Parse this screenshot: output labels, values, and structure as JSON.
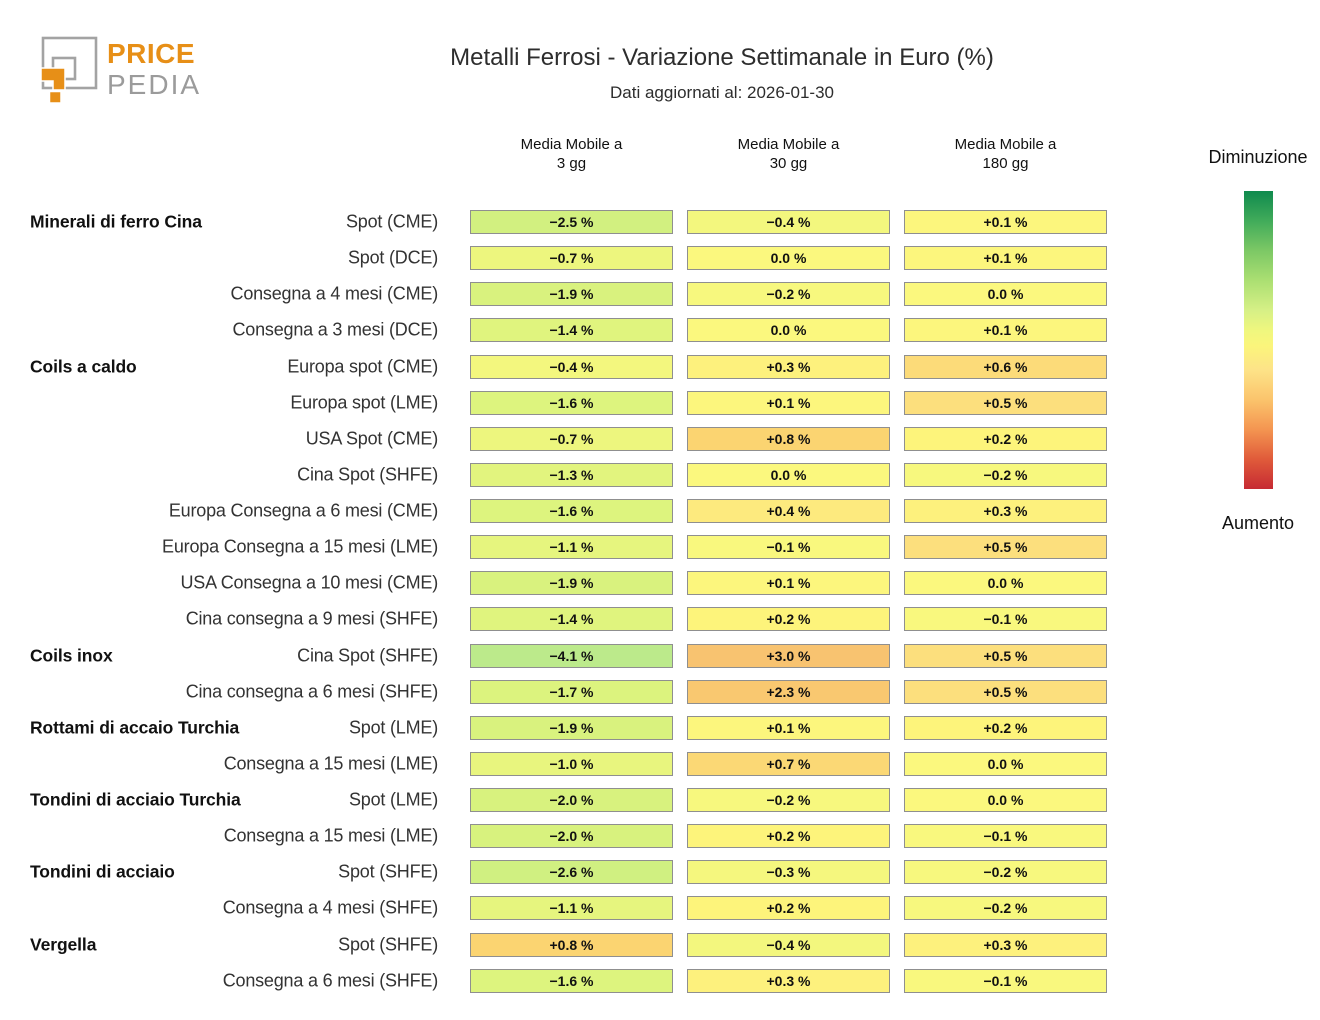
{
  "brand": {
    "line1": "PRICE",
    "line2": "PEDIA"
  },
  "header": {
    "title": "Metalli Ferrosi - Variazione Settimanale in Euro (%)",
    "subtitle": "Dati aggiornati al: 2026-01-30"
  },
  "legend": {
    "top": "Diminuzione",
    "bottom": "Aumento"
  },
  "colors": {
    "brand_orange": "#e78f17",
    "brand_gray": "#9b9b9b",
    "cell_border": "#8f8f8f",
    "colormap_anchors": [
      [
        -10,
        "#149150"
      ],
      [
        -7,
        "#63bd63"
      ],
      [
        -5,
        "#9cdb75"
      ],
      [
        -4,
        "#c0ec8d"
      ],
      [
        -3,
        "#c9ee86"
      ],
      [
        -2.5,
        "#d2f080"
      ],
      [
        -2,
        "#d8f27e"
      ],
      [
        -1.5,
        "#def47e"
      ],
      [
        -1,
        "#e8f57e"
      ],
      [
        -0.5,
        "#f1f77e"
      ],
      [
        0,
        "#fbf87e"
      ],
      [
        0.2,
        "#fdf47b"
      ],
      [
        0.35,
        "#fdef7e"
      ],
      [
        0.5,
        "#fcdf7d"
      ],
      [
        0.8,
        "#fbd471"
      ],
      [
        1.5,
        "#facd6f"
      ],
      [
        3,
        "#f8c370"
      ],
      [
        5,
        "#f59a50"
      ],
      [
        7,
        "#e8653c"
      ],
      [
        10,
        "#cc2631"
      ]
    ],
    "legend_gradient": [
      [
        "0%",
        "#0f8a4e"
      ],
      [
        "10%",
        "#41ab5a"
      ],
      [
        "20%",
        "#7cc865"
      ],
      [
        "30%",
        "#abdf72"
      ],
      [
        "40%",
        "#d6f086"
      ],
      [
        "47%",
        "#f0f77e"
      ],
      [
        "52%",
        "#fbf57b"
      ],
      [
        "60%",
        "#fde388"
      ],
      [
        "70%",
        "#fbc46c"
      ],
      [
        "80%",
        "#f49551"
      ],
      [
        "90%",
        "#e05b3a"
      ],
      [
        "100%",
        "#c62a33"
      ]
    ]
  },
  "chart_data": {
    "type": "heatmap",
    "title": "Metalli Ferrosi - Variazione Settimanale in Euro (%)",
    "subtitle": "Dati aggiornati al: 2026-01-30",
    "value_unit": "%",
    "value_domain": [
      -10,
      10
    ],
    "legend": {
      "top_label": "Diminuzione",
      "bottom_label": "Aumento",
      "orientation": "vertical-green-to-red"
    },
    "columns": [
      {
        "label": "Media Mobile a",
        "sub": "3 gg"
      },
      {
        "label": "Media Mobile a",
        "sub": "30 gg"
      },
      {
        "label": "Media Mobile a",
        "sub": "180 gg"
      }
    ],
    "rows": [
      {
        "category": "Minerali di ferro Cina",
        "label": "Spot (CME)",
        "values": [
          -2.5,
          -0.4,
          0.1
        ]
      },
      {
        "category": "",
        "label": "Spot (DCE)",
        "values": [
          -0.7,
          0.0,
          0.1
        ]
      },
      {
        "category": "",
        "label": "Consegna a 4 mesi (CME)",
        "values": [
          -1.9,
          -0.2,
          0.0
        ]
      },
      {
        "category": "",
        "label": "Consegna a 3 mesi (DCE)",
        "values": [
          -1.4,
          0.0,
          0.1
        ]
      },
      {
        "category": "Coils a caldo",
        "label": "Europa spot (CME)",
        "values": [
          -0.4,
          0.3,
          0.6
        ]
      },
      {
        "category": "",
        "label": "Europa spot (LME)",
        "values": [
          -1.6,
          0.1,
          0.5
        ]
      },
      {
        "category": "",
        "label": "USA Spot (CME)",
        "values": [
          -0.7,
          0.8,
          0.2
        ]
      },
      {
        "category": "",
        "label": "Cina Spot (SHFE)",
        "values": [
          -1.3,
          0.0,
          -0.2
        ]
      },
      {
        "category": "",
        "label": "Europa Consegna a 6 mesi (CME)",
        "values": [
          -1.6,
          0.4,
          0.3
        ]
      },
      {
        "category": "",
        "label": "Europa Consegna a 15 mesi (LME)",
        "values": [
          -1.1,
          -0.1,
          0.5
        ]
      },
      {
        "category": "",
        "label": "USA Consegna a 10 mesi (CME)",
        "values": [
          -1.9,
          0.1,
          0.0
        ]
      },
      {
        "category": "",
        "label": "Cina consegna a 9 mesi (SHFE)",
        "values": [
          -1.4,
          0.2,
          -0.1
        ]
      },
      {
        "category": "Coils inox",
        "label": "Cina Spot (SHFE)",
        "values": [
          -4.1,
          3.0,
          0.5
        ]
      },
      {
        "category": "",
        "label": "Cina consegna a 6 mesi (SHFE)",
        "values": [
          -1.7,
          2.3,
          0.5
        ]
      },
      {
        "category": "Rottami di accaio Turchia",
        "label": "Spot (LME)",
        "values": [
          -1.9,
          0.1,
          0.2
        ]
      },
      {
        "category": "",
        "label": "Consegna a 15 mesi (LME)",
        "values": [
          -1.0,
          0.7,
          0.0
        ]
      },
      {
        "category": "Tondini di acciaio Turchia",
        "label": "Spot (LME)",
        "values": [
          -2.0,
          -0.2,
          0.0
        ]
      },
      {
        "category": "",
        "label": "Consegna a 15 mesi (LME)",
        "values": [
          -2.0,
          0.2,
          -0.1
        ]
      },
      {
        "category": "Tondini di acciaio",
        "label": "Spot (SHFE)",
        "values": [
          -2.6,
          -0.3,
          -0.2
        ]
      },
      {
        "category": "",
        "label": "Consegna a 4 mesi (SHFE)",
        "values": [
          -1.1,
          0.2,
          -0.2
        ]
      },
      {
        "category": "Vergella",
        "label": "Spot (SHFE)",
        "values": [
          0.8,
          -0.4,
          0.3
        ]
      },
      {
        "category": "",
        "label": "Consegna a 6 mesi (SHFE)",
        "values": [
          -1.6,
          0.3,
          -0.1
        ]
      }
    ]
  }
}
